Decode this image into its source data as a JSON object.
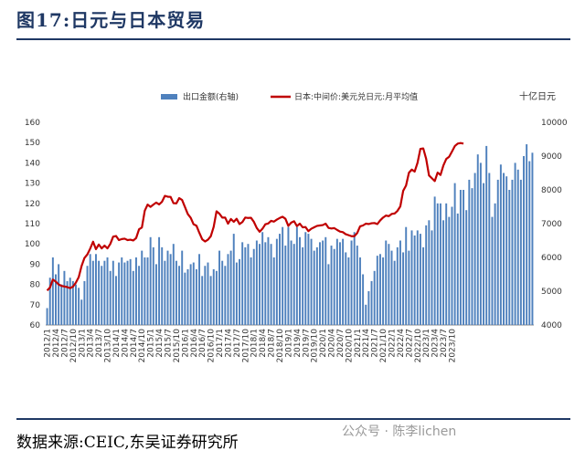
{
  "figure": {
    "title": "图17:日元与日本贸易",
    "source": "数据来源:CEIC,东吴证券研究所",
    "watermark": "公众号 · 陈李lichen"
  },
  "chart_data": {
    "type": "bar+line",
    "title": "",
    "right_axis_unit": "十亿日元",
    "legend_position": "top",
    "grid": false,
    "colors": {
      "bar": "#4f81bd",
      "line": "#c00000"
    },
    "left_axis": {
      "min": 60,
      "max": 160,
      "ticks": [
        60,
        70,
        80,
        90,
        100,
        110,
        120,
        130,
        140,
        150,
        160
      ]
    },
    "right_axis": {
      "min": 4000,
      "max": 10000,
      "ticks": [
        4000,
        5000,
        6000,
        7000,
        8000,
        9000,
        10000
      ]
    },
    "x_tick_labels": [
      "2012/1",
      "2012/4",
      "2012/7",
      "2012/10",
      "2013/1",
      "2013/4",
      "2013/7",
      "2013/10",
      "2014/1",
      "2014/4",
      "2014/7",
      "2014/10",
      "2015/1",
      "2015/4",
      "2015/7",
      "2015/10",
      "2016/1",
      "2016/4",
      "2016/7",
      "2016/10",
      "2017/1",
      "2017/4",
      "2017/7",
      "2017/10",
      "2018/1",
      "2018/4",
      "2018/7",
      "2018/10",
      "2019/1",
      "2019/4",
      "2019/7",
      "2019/10",
      "2020/1",
      "2020/4",
      "2020/7",
      "2020/10",
      "2021/1",
      "2021/4",
      "2021/7",
      "2021/10",
      "2022/1",
      "2022/4",
      "2022/7",
      "2022/10",
      "2023/1",
      "2023/4",
      "2023/7",
      "2023/10"
    ],
    "series": [
      {
        "name": "出口金额(右轴)",
        "type": "bar",
        "axis": "right",
        "start": "2012/1",
        "values": [
          4500,
          5400,
          6000,
          5500,
          5800,
          5200,
          5600,
          5300,
          5400,
          5300,
          5200,
          5100,
          4750,
          5300,
          5750,
          6100,
          5900,
          6100,
          5900,
          5750,
          5900,
          6000,
          5600,
          5900,
          5450,
          5850,
          6000,
          5850,
          5900,
          5950,
          5600,
          6000,
          5750,
          6200,
          6000,
          6000,
          6600,
          6300,
          5800,
          6600,
          6300,
          5900,
          6200,
          6100,
          6400,
          5900,
          5750,
          6200,
          5550,
          5650,
          5800,
          5850,
          5650,
          6100,
          5450,
          5750,
          5850,
          5450,
          5650,
          5600,
          6200,
          5900,
          5750,
          6100,
          6200,
          6700,
          5850,
          5950,
          6450,
          6300,
          6400,
          6000,
          6250,
          6500,
          6400,
          6750,
          6450,
          6600,
          6400,
          6000,
          6550,
          6700,
          6900,
          6350,
          6900,
          6500,
          6400,
          6900,
          6600,
          6300,
          6750,
          6700,
          6550,
          6200,
          6300,
          6450,
          6500,
          6600,
          5800,
          6350,
          6250,
          6550,
          6450,
          6550,
          6150,
          6000,
          6500,
          6750,
          6350,
          6000,
          5500,
          4600,
          5000,
          5300,
          5600,
          6050,
          6100,
          6000,
          6500,
          6400,
          6200,
          5900,
          6300,
          6500,
          6150,
          6900,
          6200,
          6800,
          6650,
          6800,
          6700,
          6300,
          6950,
          7100,
          6800,
          7800,
          7600,
          7600,
          7100,
          7600,
          7200,
          7500,
          8200,
          7300,
          8000,
          8000,
          7400,
          8300,
          8050,
          8500,
          9050,
          8800,
          8200,
          9300,
          8500,
          7200,
          7600,
          8300,
          8750,
          8500,
          8400,
          8000,
          8300,
          8800,
          8600,
          8300,
          9000,
          9350,
          8850,
          9100
        ]
      },
      {
        "name": "日本:中间价:美元兑日元:月平均值",
        "type": "line",
        "axis": "left",
        "start": "2012/1",
        "values": [
          77.0,
          78.5,
          82.4,
          81.4,
          80.0,
          79.3,
          79.0,
          78.7,
          78.2,
          78.9,
          80.9,
          83.6,
          89.1,
          93.1,
          94.8,
          97.7,
          101.1,
          97.4,
          99.7,
          97.8,
          99.2,
          97.8,
          100.0,
          103.6,
          103.9,
          101.9,
          102.4,
          102.6,
          101.9,
          102.1,
          101.7,
          102.9,
          107.2,
          108.1,
          116.4,
          119.4,
          118.3,
          119.4,
          120.4,
          119.5,
          120.8,
          123.7,
          123.3,
          123.2,
          120.1,
          120.0,
          122.6,
          121.7,
          118.2,
          114.7,
          112.9,
          109.7,
          109.0,
          105.5,
          102.3,
          101.2,
          102.1,
          103.8,
          108.4,
          116.1,
          114.9,
          113.0,
          113.0,
          110.0,
          112.3,
          110.9,
          112.4,
          109.8,
          110.8,
          113.0,
          112.8,
          112.9,
          110.9,
          107.9,
          106.0,
          107.5,
          109.7,
          110.1,
          111.4,
          111.0,
          112.0,
          112.8,
          113.4,
          112.4,
          108.9,
          110.5,
          111.2,
          108.8,
          110.0,
          108.2,
          108.3,
          106.3,
          107.5,
          108.2,
          108.9,
          109.1,
          109.3,
          110.0,
          107.9,
          107.6,
          107.8,
          106.9,
          106.1,
          105.8,
          104.8,
          104.3,
          103.8,
          103.8,
          105.4,
          108.7,
          109.1,
          110.0,
          109.8,
          110.2,
          110.3,
          109.8,
          111.6,
          113.0,
          114.0,
          113.7,
          114.8,
          115.0,
          116.3,
          118.5,
          126.2,
          128.8,
          135.1,
          136.7,
          135.7,
          140.0,
          146.9,
          147.1,
          142.0,
          133.8,
          132.4,
          131.0,
          135.2,
          134.0,
          138.7,
          141.9,
          143.0,
          145.6,
          148.3,
          149.5,
          149.8,
          149.5
        ]
      }
    ]
  }
}
